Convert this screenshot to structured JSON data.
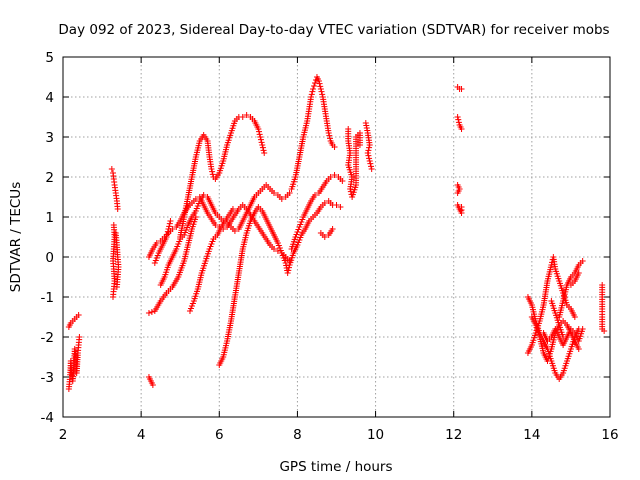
{
  "chart_data": {
    "type": "scatter",
    "title": "Day 092 of 2023, Sidereal Day-to-day VTEC variation (SDTVAR) for receiver mobs",
    "xlabel": "GPS time / hours",
    "ylabel": "SDTVAR / TECUs",
    "xlim": [
      2,
      16
    ],
    "ylim": [
      -4,
      5
    ],
    "xticks": [
      2,
      4,
      6,
      8,
      10,
      12,
      14,
      16
    ],
    "yticks": [
      -4,
      -3,
      -2,
      -1,
      0,
      1,
      2,
      3,
      4,
      5
    ],
    "grid": true,
    "marker": "+",
    "color": "#ff0000",
    "segments": [
      [
        [
          2.15,
          -3.3
        ],
        [
          2.18,
          -3.0
        ],
        [
          2.2,
          -2.6
        ],
        [
          2.22,
          -2.9
        ],
        [
          2.25,
          -3.1
        ],
        [
          2.28,
          -2.7
        ],
        [
          2.3,
          -2.3
        ],
        [
          2.33,
          -2.5
        ],
        [
          2.35,
          -2.9
        ],
        [
          2.38,
          -2.4
        ],
        [
          2.4,
          -2.2
        ],
        [
          2.42,
          -2.0
        ]
      ],
      [
        [
          2.15,
          -1.75
        ],
        [
          2.2,
          -1.65
        ],
        [
          2.25,
          -1.6
        ],
        [
          2.3,
          -1.55
        ],
        [
          2.35,
          -1.5
        ],
        [
          2.4,
          -1.45
        ]
      ],
      [
        [
          3.25,
          2.2
        ],
        [
          3.28,
          2.1
        ],
        [
          3.3,
          1.95
        ],
        [
          3.32,
          1.8
        ],
        [
          3.35,
          1.6
        ],
        [
          3.38,
          1.4
        ],
        [
          3.4,
          1.2
        ]
      ],
      [
        [
          3.3,
          0.8
        ],
        [
          3.32,
          0.5
        ],
        [
          3.3,
          0.2
        ],
        [
          3.28,
          -0.1
        ],
        [
          3.3,
          -0.3
        ],
        [
          3.32,
          -0.6
        ],
        [
          3.3,
          -0.8
        ],
        [
          3.28,
          -1.0
        ]
      ],
      [
        [
          3.35,
          0.6
        ],
        [
          3.38,
          0.3
        ],
        [
          3.4,
          0.0
        ],
        [
          3.42,
          -0.25
        ],
        [
          3.4,
          -0.5
        ],
        [
          3.38,
          -0.75
        ]
      ],
      [
        [
          4.2,
          -3.0
        ],
        [
          4.25,
          -3.1
        ],
        [
          4.3,
          -3.2
        ]
      ],
      [
        [
          4.2,
          -1.4
        ],
        [
          4.35,
          -1.35
        ],
        [
          4.5,
          -1.1
        ],
        [
          4.65,
          -0.9
        ],
        [
          4.8,
          -0.75
        ],
        [
          4.95,
          -0.5
        ],
        [
          5.1,
          -0.1
        ],
        [
          5.2,
          0.3
        ],
        [
          5.3,
          0.7
        ],
        [
          5.4,
          1.0
        ]
      ],
      [
        [
          4.2,
          0.0
        ],
        [
          4.3,
          0.2
        ],
        [
          4.4,
          0.35
        ],
        [
          4.5,
          0.4
        ],
        [
          4.6,
          0.5
        ],
        [
          4.7,
          0.6
        ],
        [
          4.8,
          0.7
        ],
        [
          4.9,
          0.75
        ],
        [
          5.0,
          0.9
        ],
        [
          5.1,
          1.1
        ],
        [
          5.2,
          1.25
        ],
        [
          5.3,
          1.35
        ],
        [
          5.4,
          1.45
        ],
        [
          5.5,
          1.5
        ],
        [
          5.6,
          1.3
        ],
        [
          5.7,
          1.1
        ],
        [
          5.8,
          0.95
        ],
        [
          5.9,
          0.8
        ],
        [
          6.0,
          0.75
        ],
        [
          6.1,
          0.7
        ],
        [
          6.2,
          0.75
        ],
        [
          6.3,
          0.9
        ],
        [
          6.4,
          1.05
        ],
        [
          6.5,
          1.2
        ],
        [
          6.6,
          1.3
        ],
        [
          6.7,
          1.2
        ],
        [
          6.8,
          1.05
        ],
        [
          6.9,
          0.9
        ],
        [
          7.0,
          0.75
        ],
        [
          7.1,
          0.6
        ],
        [
          7.2,
          0.45
        ],
        [
          7.3,
          0.3
        ],
        [
          7.4,
          0.2
        ],
        [
          7.5,
          0.15
        ],
        [
          7.6,
          0.1
        ],
        [
          7.7,
          0.0
        ],
        [
          7.8,
          -0.1
        ]
      ],
      [
        [
          4.35,
          -0.15
        ],
        [
          4.45,
          0.1
        ],
        [
          4.55,
          0.3
        ],
        [
          4.65,
          0.5
        ],
        [
          4.7,
          0.7
        ],
        [
          4.75,
          0.9
        ]
      ],
      [
        [
          4.5,
          -0.7
        ],
        [
          4.6,
          -0.5
        ],
        [
          4.7,
          -0.2
        ],
        [
          4.8,
          0.0
        ],
        [
          4.9,
          0.2
        ],
        [
          5.0,
          0.45
        ],
        [
          5.1,
          0.55
        ],
        [
          5.2,
          0.8
        ],
        [
          5.3,
          1.0
        ],
        [
          5.4,
          1.15
        ],
        [
          5.5,
          1.4
        ],
        [
          5.6,
          1.55
        ],
        [
          5.7,
          1.5
        ],
        [
          5.8,
          1.3
        ],
        [
          5.9,
          1.1
        ],
        [
          6.0,
          1.0
        ],
        [
          6.1,
          0.9
        ],
        [
          6.2,
          0.85
        ],
        [
          6.3,
          0.75
        ],
        [
          6.4,
          0.65
        ],
        [
          6.5,
          0.7
        ],
        [
          6.6,
          0.9
        ],
        [
          6.7,
          1.1
        ],
        [
          6.8,
          1.3
        ],
        [
          6.9,
          1.5
        ],
        [
          7.0,
          1.6
        ],
        [
          7.1,
          1.7
        ],
        [
          7.2,
          1.8
        ],
        [
          7.3,
          1.7
        ],
        [
          7.4,
          1.6
        ],
        [
          7.5,
          1.55
        ],
        [
          7.6,
          1.45
        ],
        [
          7.7,
          1.5
        ],
        [
          7.8,
          1.6
        ]
      ],
      [
        [
          5.25,
          -1.35
        ],
        [
          5.35,
          -1.1
        ],
        [
          5.45,
          -0.8
        ],
        [
          5.55,
          -0.4
        ],
        [
          5.65,
          -0.1
        ],
        [
          5.75,
          0.2
        ],
        [
          5.85,
          0.45
        ],
        [
          5.95,
          0.55
        ],
        [
          6.05,
          0.75
        ],
        [
          6.15,
          0.9
        ],
        [
          6.25,
          1.05
        ],
        [
          6.35,
          1.2
        ]
      ],
      [
        [
          5.0,
          0.5
        ],
        [
          5.1,
          1.0
        ],
        [
          5.2,
          1.5
        ],
        [
          5.3,
          2.0
        ],
        [
          5.4,
          2.5
        ],
        [
          5.5,
          2.9
        ],
        [
          5.6,
          3.05
        ],
        [
          5.7,
          2.9
        ],
        [
          5.75,
          2.5
        ],
        [
          5.8,
          2.2
        ],
        [
          5.85,
          2.0
        ],
        [
          5.9,
          1.95
        ],
        [
          6.0,
          2.1
        ],
        [
          6.1,
          2.4
        ],
        [
          6.2,
          2.8
        ],
        [
          6.3,
          3.1
        ],
        [
          6.4,
          3.4
        ],
        [
          6.5,
          3.5
        ],
        [
          6.6,
          3.5
        ],
        [
          6.7,
          3.55
        ],
        [
          6.8,
          3.5
        ],
        [
          6.9,
          3.4
        ],
        [
          7.0,
          3.2
        ],
        [
          7.05,
          3.0
        ],
        [
          7.1,
          2.8
        ],
        [
          7.15,
          2.6
        ]
      ],
      [
        [
          6.0,
          -2.7
        ],
        [
          6.1,
          -2.5
        ],
        [
          6.2,
          -2.1
        ],
        [
          6.3,
          -1.6
        ],
        [
          6.4,
          -1.0
        ],
        [
          6.5,
          -0.4
        ],
        [
          6.6,
          0.2
        ],
        [
          6.7,
          0.6
        ],
        [
          6.8,
          0.9
        ],
        [
          6.9,
          1.1
        ],
        [
          7.0,
          1.25
        ],
        [
          7.1,
          1.15
        ],
        [
          7.2,
          0.95
        ],
        [
          7.3,
          0.75
        ],
        [
          7.4,
          0.55
        ],
        [
          7.5,
          0.35
        ],
        [
          7.6,
          0.1
        ],
        [
          7.7,
          -0.15
        ],
        [
          7.75,
          -0.4
        ],
        [
          7.8,
          -0.2
        ],
        [
          7.9,
          0.1
        ],
        [
          8.0,
          0.3
        ],
        [
          8.1,
          0.55
        ],
        [
          8.2,
          0.7
        ],
        [
          8.3,
          0.9
        ],
        [
          8.4,
          1.0
        ],
        [
          8.5,
          1.1
        ],
        [
          8.6,
          1.25
        ],
        [
          8.7,
          1.35
        ],
        [
          8.8,
          1.4
        ],
        [
          8.9,
          1.3
        ],
        [
          9.0,
          1.3
        ],
        [
          9.1,
          1.25
        ]
      ],
      [
        [
          7.85,
          1.7
        ],
        [
          7.95,
          2.0
        ],
        [
          8.05,
          2.5
        ],
        [
          8.15,
          3.0
        ],
        [
          8.25,
          3.4
        ],
        [
          8.3,
          3.7
        ],
        [
          8.35,
          4.0
        ],
        [
          8.4,
          4.2
        ],
        [
          8.45,
          4.35
        ],
        [
          8.5,
          4.5
        ],
        [
          8.55,
          4.4
        ],
        [
          8.6,
          4.2
        ],
        [
          8.65,
          4.0
        ],
        [
          8.7,
          3.7
        ],
        [
          8.75,
          3.4
        ],
        [
          8.8,
          3.1
        ],
        [
          8.85,
          2.9
        ],
        [
          8.9,
          2.8
        ],
        [
          8.95,
          2.75
        ]
      ],
      [
        [
          7.85,
          0.2
        ],
        [
          7.95,
          0.5
        ],
        [
          8.05,
          0.75
        ],
        [
          8.15,
          1.0
        ],
        [
          8.25,
          1.2
        ],
        [
          8.35,
          1.4
        ],
        [
          8.45,
          1.55
        ],
        [
          8.55,
          1.6
        ],
        [
          8.65,
          1.75
        ],
        [
          8.75,
          1.9
        ],
        [
          8.85,
          2.0
        ],
        [
          8.95,
          2.05
        ],
        [
          9.05,
          2.0
        ],
        [
          9.15,
          1.9
        ]
      ],
      [
        [
          8.6,
          0.6
        ],
        [
          8.7,
          0.5
        ],
        [
          8.8,
          0.55
        ],
        [
          8.9,
          0.7
        ]
      ],
      [
        [
          9.3,
          3.2
        ],
        [
          9.3,
          2.9
        ],
        [
          9.35,
          2.6
        ],
        [
          9.3,
          2.3
        ],
        [
          9.4,
          2.0
        ],
        [
          9.35,
          1.7
        ],
        [
          9.4,
          1.5
        ],
        [
          9.5,
          1.8
        ],
        [
          9.5,
          2.2
        ],
        [
          9.5,
          2.6
        ],
        [
          9.5,
          3.0
        ],
        [
          9.6,
          3.1
        ],
        [
          9.6,
          2.8
        ]
      ],
      [
        [
          9.75,
          3.35
        ],
        [
          9.8,
          3.1
        ],
        [
          9.85,
          2.8
        ],
        [
          9.8,
          2.6
        ],
        [
          9.85,
          2.4
        ],
        [
          9.9,
          2.2
        ]
      ],
      [
        [
          12.1,
          4.25
        ],
        [
          12.15,
          4.2
        ],
        [
          12.2,
          4.2
        ]
      ],
      [
        [
          12.1,
          3.5
        ],
        [
          12.15,
          3.3
        ],
        [
          12.2,
          3.2
        ]
      ],
      [
        [
          12.1,
          1.8
        ],
        [
          12.15,
          1.7
        ],
        [
          12.1,
          1.6
        ]
      ],
      [
        [
          12.1,
          1.3
        ],
        [
          12.15,
          1.2
        ],
        [
          12.2,
          1.1
        ],
        [
          12.2,
          1.25
        ]
      ],
      [
        [
          13.9,
          -1.0
        ],
        [
          14.0,
          -1.2
        ],
        [
          14.1,
          -1.6
        ],
        [
          14.2,
          -1.9
        ],
        [
          14.3,
          -2.1
        ],
        [
          14.4,
          -2.3
        ],
        [
          14.5,
          -2.6
        ],
        [
          14.6,
          -2.9
        ],
        [
          14.7,
          -3.05
        ],
        [
          14.8,
          -2.9
        ],
        [
          14.9,
          -2.6
        ],
        [
          15.0,
          -2.3
        ],
        [
          15.1,
          -2.0
        ],
        [
          15.2,
          -1.8
        ]
      ],
      [
        [
          13.9,
          -2.4
        ],
        [
          14.0,
          -2.2
        ],
        [
          14.1,
          -1.9
        ],
        [
          14.2,
          -1.6
        ],
        [
          14.3,
          -1.2
        ],
        [
          14.4,
          -0.6
        ],
        [
          14.5,
          -0.2
        ],
        [
          14.55,
          0.0
        ],
        [
          14.6,
          -0.3
        ],
        [
          14.7,
          -0.6
        ],
        [
          14.8,
          -0.9
        ],
        [
          14.9,
          -1.2
        ],
        [
          15.0,
          -1.3
        ],
        [
          15.1,
          -1.5
        ]
      ],
      [
        [
          14.0,
          -1.5
        ],
        [
          14.1,
          -1.7
        ],
        [
          14.2,
          -2.0
        ],
        [
          14.3,
          -2.4
        ],
        [
          14.4,
          -2.6
        ],
        [
          14.5,
          -2.3
        ],
        [
          14.6,
          -1.9
        ],
        [
          14.7,
          -1.7
        ],
        [
          14.8,
          -1.6
        ],
        [
          14.9,
          -1.7
        ],
        [
          15.0,
          -1.9
        ],
        [
          15.1,
          -2.1
        ],
        [
          15.2,
          -2.3
        ]
      ],
      [
        [
          14.3,
          -1.9
        ],
        [
          14.4,
          -2.1
        ],
        [
          14.5,
          -2.0
        ],
        [
          14.6,
          -1.8
        ],
        [
          14.7,
          -2.0
        ],
        [
          14.8,
          -2.2
        ],
        [
          14.9,
          -2.0
        ],
        [
          15.0,
          -1.8
        ],
        [
          15.1,
          -1.9
        ],
        [
          15.2,
          -2.1
        ],
        [
          15.3,
          -1.8
        ]
      ],
      [
        [
          14.7,
          -1.5
        ],
        [
          14.8,
          -1.1
        ],
        [
          14.9,
          -0.7
        ],
        [
          15.0,
          -0.5
        ],
        [
          15.1,
          -0.4
        ],
        [
          15.2,
          -0.2
        ],
        [
          15.3,
          -0.1
        ]
      ],
      [
        [
          14.5,
          -1.1
        ],
        [
          14.6,
          -1.4
        ],
        [
          14.7,
          -1.7
        ],
        [
          14.8,
          -2.0
        ]
      ],
      [
        [
          15.0,
          -0.7
        ],
        [
          15.1,
          -0.6
        ],
        [
          15.2,
          -0.4
        ]
      ],
      [
        [
          15.8,
          -0.7
        ],
        [
          15.8,
          -1.3
        ],
        [
          15.8,
          -1.5
        ],
        [
          15.8,
          -1.8
        ],
        [
          15.85,
          -1.85
        ]
      ]
    ]
  }
}
